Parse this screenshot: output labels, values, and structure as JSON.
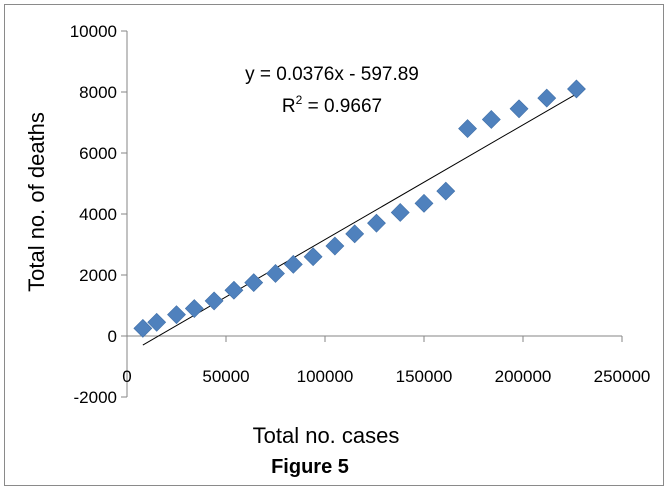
{
  "chart_data": {
    "type": "scatter",
    "title": "",
    "xlabel": "Total no. cases",
    "ylabel": "Total no. of deaths",
    "caption": "Figure 5",
    "xlim": [
      0,
      250000
    ],
    "ylim": [
      -2000,
      10000
    ],
    "x_ticks": [
      0,
      50000,
      100000,
      150000,
      200000,
      250000
    ],
    "y_ticks": [
      -2000,
      0,
      2000,
      4000,
      6000,
      8000,
      10000
    ],
    "x_tick_labels": [
      "0",
      "50000",
      "100000",
      "150000",
      "200000",
      "250000"
    ],
    "y_tick_labels": [
      "-2000",
      "0",
      "2000",
      "4000",
      "6000",
      "8000",
      "10000"
    ],
    "grid": false,
    "marker": "diamond",
    "marker_color": "#4f81bd",
    "trendline_color": "#000000",
    "series": [
      {
        "x": [
          8000,
          15000,
          25000,
          34000,
          44000,
          54000,
          64000,
          75000,
          84000,
          94000,
          105000,
          115000,
          126000,
          138000,
          150000,
          161000,
          172000,
          184000,
          198000,
          212000,
          227000
        ],
        "y": [
          250,
          450,
          700,
          900,
          1150,
          1500,
          1750,
          2050,
          2350,
          2600,
          2950,
          3350,
          3700,
          4050,
          4350,
          4750,
          6800,
          7100,
          7450,
          7800,
          8100
        ]
      }
    ],
    "trendline": {
      "slope": 0.0376,
      "intercept": -597.89,
      "x_range": [
        8000,
        227000
      ],
      "equation_label": "y = 0.0376x - 597.89",
      "r2_prefix": "R",
      "r2_sup": "2",
      "r2_suffix": " = 0.9667"
    }
  }
}
